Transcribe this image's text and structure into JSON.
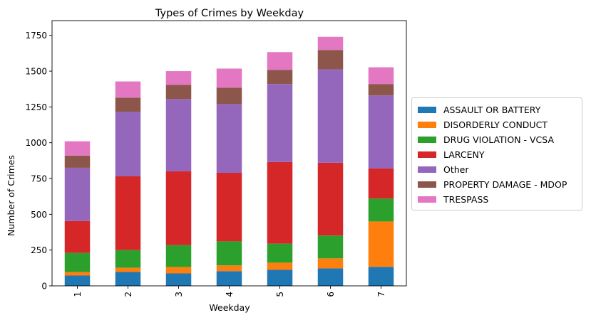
{
  "chart_data": {
    "type": "bar",
    "stacked": true,
    "title": "Types of Crimes by Weekday",
    "xlabel": "Weekday",
    "ylabel": "Number of Crimes",
    "categories": [
      "1",
      "2",
      "3",
      "4",
      "5",
      "6",
      "7"
    ],
    "ylim": [
      0,
      1800
    ],
    "yticks": [
      "0",
      "250",
      "500",
      "750",
      "1000",
      "1250",
      "1500",
      "1750"
    ],
    "legend_position": "right",
    "series": [
      {
        "name": "ASSAULT OR BATTERY",
        "color": "#1f77b4",
        "values": [
          72,
          97,
          87,
          103,
          112,
          122,
          133
        ]
      },
      {
        "name": "DISORDERLY CONDUCT",
        "color": "#ff7f0e",
        "values": [
          25,
          30,
          45,
          40,
          50,
          70,
          317
        ]
      },
      {
        "name": "DRUG VIOLATION - VCSA",
        "color": "#2ca02c",
        "values": [
          133,
          123,
          153,
          168,
          133,
          160,
          160
        ]
      },
      {
        "name": "LARCENY",
        "color": "#d62728",
        "values": [
          223,
          515,
          515,
          479,
          570,
          508,
          210
        ]
      },
      {
        "name": "Other",
        "color": "#9467bd",
        "values": [
          372,
          450,
          505,
          480,
          545,
          653,
          510
        ]
      },
      {
        "name": "PROPERTY DAMAGE - MDOP",
        "color": "#8c564b",
        "values": [
          85,
          100,
          100,
          115,
          98,
          135,
          80
        ]
      },
      {
        "name": "TRESPASS",
        "color": "#e377c2",
        "values": [
          100,
          113,
          95,
          133,
          125,
          92,
          117
        ]
      }
    ]
  }
}
